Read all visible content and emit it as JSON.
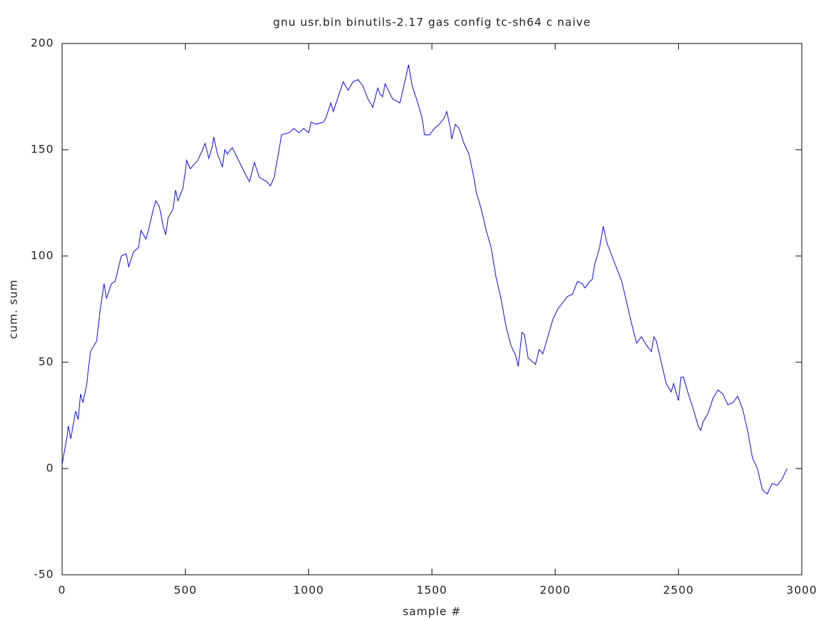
{
  "chart_data": {
    "type": "line",
    "title": "gnu usr.bin binutils-2.17 gas config tc-sh64 c naive",
    "x_label": "sample #",
    "y_label": "cum. sum",
    "xlim": [
      0,
      3000
    ],
    "xticks": [
      0,
      500,
      1000,
      1500,
      2000,
      2500,
      3000
    ],
    "ylim": [
      -50,
      200
    ],
    "yticks": [
      -50,
      0,
      50,
      100,
      150,
      200
    ],
    "series": [
      {
        "name": "cum. sum",
        "color": "#0000ff",
        "x": [
          0,
          20,
          25,
          35,
          55,
          65,
          75,
          85,
          100,
          115,
          130,
          140,
          155,
          170,
          180,
          200,
          215,
          240,
          260,
          270,
          290,
          310,
          320,
          340,
          350,
          370,
          380,
          395,
          410,
          420,
          430,
          450,
          460,
          470,
          490,
          500,
          505,
          520,
          550,
          570,
          580,
          595,
          610,
          615,
          630,
          650,
          660,
          670,
          690,
          720,
          750,
          760,
          780,
          800,
          830,
          845,
          860,
          880,
          890,
          920,
          940,
          960,
          980,
          1000,
          1010,
          1030,
          1060,
          1070,
          1090,
          1100,
          1120,
          1140,
          1160,
          1180,
          1200,
          1220,
          1240,
          1260,
          1280,
          1290,
          1300,
          1310,
          1340,
          1370,
          1390,
          1405,
          1420,
          1440,
          1460,
          1470,
          1490,
          1510,
          1530,
          1550,
          1560,
          1575,
          1580,
          1595,
          1610,
          1630,
          1650,
          1670,
          1680,
          1700,
          1720,
          1740,
          1760,
          1780,
          1800,
          1820,
          1840,
          1850,
          1865,
          1875,
          1890,
          1910,
          1920,
          1935,
          1950,
          1970,
          1990,
          2010,
          2030,
          2050,
          2070,
          2090,
          2110,
          2120,
          2140,
          2150,
          2160,
          2180,
          2195,
          2210,
          2230,
          2250,
          2270,
          2290,
          2310,
          2330,
          2350,
          2370,
          2390,
          2400,
          2410,
          2430,
          2450,
          2470,
          2480,
          2500,
          2510,
          2520,
          2540,
          2560,
          2580,
          2590,
          2600,
          2620,
          2640,
          2660,
          2680,
          2700,
          2720,
          2740,
          2760,
          2780,
          2800,
          2820,
          2840,
          2860,
          2880,
          2900,
          2920,
          2940
        ],
        "values": [
          2,
          15,
          20,
          14,
          27,
          23,
          35,
          31,
          40,
          55,
          58,
          60,
          75,
          87,
          80,
          87,
          88,
          100,
          101,
          95,
          102,
          104,
          112,
          108,
          112,
          122,
          126,
          123,
          114,
          110,
          118,
          122,
          131,
          126,
          132,
          140,
          145,
          141,
          145,
          150,
          153,
          146,
          152,
          156,
          148,
          142,
          150,
          148,
          151,
          144,
          137,
          135,
          144,
          137,
          135,
          133,
          137,
          150,
          157,
          158,
          160,
          158,
          160,
          158,
          163,
          162,
          163,
          165,
          172,
          168,
          175,
          182,
          178,
          182,
          183,
          180,
          174,
          170,
          179,
          176,
          175,
          181,
          174,
          172,
          182,
          190,
          180,
          173,
          165,
          157,
          157,
          160,
          162,
          165,
          168,
          160,
          155,
          162,
          160,
          153,
          148,
          137,
          130,
          122,
          112,
          104,
          90,
          80,
          67,
          58,
          53,
          48,
          64,
          63,
          52,
          50,
          49,
          56,
          54,
          62,
          70,
          75,
          78,
          81,
          82,
          88,
          87,
          85,
          88,
          89,
          96,
          104,
          114,
          106,
          100,
          94,
          88,
          78,
          68,
          59,
          62,
          58,
          55,
          62,
          60,
          50,
          40,
          36,
          40,
          32,
          43,
          43,
          35,
          28,
          20,
          18,
          22,
          26,
          33,
          37,
          35,
          30,
          31,
          34,
          28,
          18,
          5,
          0,
          -10,
          -12,
          -7,
          -8,
          -5,
          0
        ]
      }
    ]
  }
}
